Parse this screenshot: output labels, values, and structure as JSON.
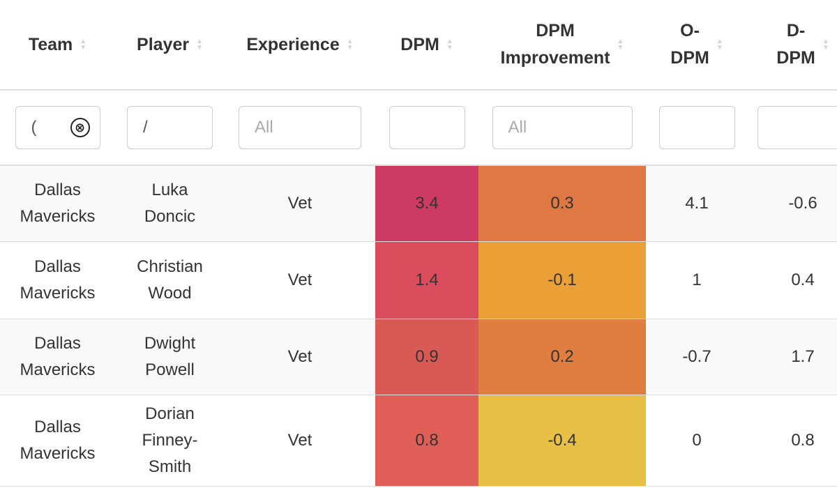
{
  "columns": [
    {
      "key": "team",
      "label": "Team"
    },
    {
      "key": "player",
      "label": "Player"
    },
    {
      "key": "experience",
      "label": "Experience"
    },
    {
      "key": "dpm",
      "label": "DPM"
    },
    {
      "key": "dpm_improvement",
      "label_line1": "DPM",
      "label_line2": "Improvement"
    },
    {
      "key": "o_dpm",
      "label_line1": "O-",
      "label_line2": "DPM"
    },
    {
      "key": "d_dpm",
      "label_line1": "D-",
      "label_line2": "DPM"
    }
  ],
  "sort_icon": {
    "up": "▲",
    "down": "▼",
    "name": "sort-arrows-icon"
  },
  "filters": {
    "team": {
      "value": "(",
      "clear_icon": "⊗"
    },
    "player": {
      "value": "/"
    },
    "experience": {
      "placeholder": "All"
    },
    "dpm": {
      "value": ""
    },
    "dpm_improvement": {
      "placeholder": "All"
    },
    "o_dpm": {
      "value": ""
    },
    "d_dpm": {
      "value": ""
    }
  },
  "rows": [
    {
      "team_line1": "Dallas",
      "team_line2": "Mavericks",
      "player_line1": "Luka",
      "player_line2": "Doncic",
      "player_line3": "",
      "experience": "Vet",
      "dpm": "3.4",
      "dpm_improvement": "0.3",
      "o_dpm": "4.1",
      "d_dpm": "-0.6",
      "dpm_color": "#cd3a63",
      "imp_color": "#e07843"
    },
    {
      "team_line1": "Dallas",
      "team_line2": "Mavericks",
      "player_line1": "Christian",
      "player_line2": "Wood",
      "player_line3": "",
      "experience": "Vet",
      "dpm": "1.4",
      "dpm_improvement": "-0.1",
      "o_dpm": "1",
      "d_dpm": "0.4",
      "dpm_color": "#db4d5c",
      "imp_color": "#eaa037"
    },
    {
      "team_line1": "Dallas",
      "team_line2": "Mavericks",
      "player_line1": "Dwight",
      "player_line2": "Powell",
      "player_line3": "",
      "experience": "Vet",
      "dpm": "0.9",
      "dpm_improvement": "0.2",
      "o_dpm": "-0.7",
      "d_dpm": "1.7",
      "dpm_color": "#d95a55",
      "imp_color": "#e07e42"
    },
    {
      "team_line1": "Dallas",
      "team_line2": "Mavericks",
      "player_line1": "Dorian",
      "player_line2": "Finney-",
      "player_line3": "Smith",
      "experience": "Vet",
      "dpm": "0.8",
      "dpm_improvement": "-0.4",
      "o_dpm": "0",
      "d_dpm": "0.8",
      "dpm_color": "#df5f58",
      "imp_color": "#e8c046"
    }
  ]
}
